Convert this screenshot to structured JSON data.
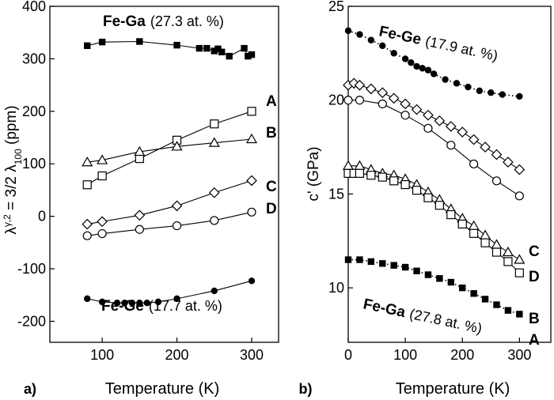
{
  "chart_data": [
    {
      "type": "line",
      "panel": "a)",
      "xlabel": "Temperature (K)",
      "ylabel": {
        "symbol": "λ",
        "sup": "γ,2",
        "middle": " = 3/2 λ",
        "sub": "100",
        "unit": " (ppm)"
      },
      "xlim": [
        30,
        336
      ],
      "ylim": [
        -240,
        400
      ],
      "xticks": [
        100,
        200,
        300
      ],
      "yticks": [
        -200,
        -100,
        0,
        100,
        200,
        300,
        400
      ],
      "series": [
        {
          "name": "Fe-Ga",
          "note": "(27.3 at. %)",
          "marker": "filled-square",
          "line": "solid",
          "color": "#000000",
          "x": [
            80,
            100,
            150,
            200,
            230,
            240,
            250,
            255,
            260,
            270,
            290,
            295,
            300
          ],
          "values": [
            325,
            332,
            333,
            326,
            320,
            320,
            315,
            319,
            313,
            305,
            320,
            305,
            308
          ]
        },
        {
          "name": "A",
          "marker": "open-square",
          "line": "solid",
          "color": "#000000",
          "x": [
            80,
            100,
            150,
            200,
            250,
            300
          ],
          "values": [
            60,
            77,
            110,
            145,
            176,
            200
          ]
        },
        {
          "name": "B",
          "marker": "open-triangle",
          "line": "solid",
          "color": "#000000",
          "x": [
            80,
            100,
            150,
            200,
            250,
            300
          ],
          "values": [
            103,
            107,
            123,
            133,
            140,
            147
          ]
        },
        {
          "name": "C",
          "marker": "open-diamond",
          "line": "solid",
          "color": "#000000",
          "x": [
            80,
            100,
            150,
            200,
            250,
            300
          ],
          "values": [
            -15,
            -10,
            2,
            20,
            45,
            68
          ]
        },
        {
          "name": "D",
          "marker": "open-circle",
          "line": "solid",
          "color": "#000000",
          "x": [
            80,
            100,
            150,
            200,
            250,
            300
          ],
          "values": [
            -37,
            -33,
            -25,
            -18,
            -8,
            8
          ]
        },
        {
          "name": "Fe-Ge",
          "note": "(17.7 at. %)",
          "marker": "filled-circle",
          "line": "solid",
          "color": "#000000",
          "x": [
            80,
            100,
            120,
            130,
            140,
            150,
            160,
            175,
            200,
            250,
            300
          ],
          "values": [
            -157,
            -163,
            -165,
            -165,
            -165,
            -165,
            -165,
            -163,
            -157,
            -142,
            -123
          ]
        }
      ]
    },
    {
      "type": "line",
      "panel": "b)",
      "xlabel": "Temperature (K)",
      "ylabel": {
        "text": "c' (GPa)"
      },
      "xlim": [
        0,
        355
      ],
      "ylim": [
        7.1,
        25
      ],
      "xticks": [
        0,
        100,
        200,
        300
      ],
      "yticks": [
        10,
        15,
        20,
        25
      ],
      "series": [
        {
          "name": "Fe-Ge",
          "note": "(17.9 at. %)",
          "marker": "filled-circle",
          "line": "dotted",
          "color": "#000000",
          "x": [
            0,
            20,
            40,
            60,
            80,
            100,
            110,
            120,
            130,
            140,
            150,
            170,
            190,
            210,
            230,
            250,
            270,
            300
          ],
          "values": [
            23.7,
            23.5,
            23.2,
            22.9,
            22.5,
            22.2,
            22.0,
            21.8,
            21.7,
            21.6,
            21.4,
            21.1,
            20.9,
            20.7,
            20.5,
            20.4,
            20.3,
            20.2
          ]
        },
        {
          "name": "C",
          "marker": "open-diamond",
          "line": "solid",
          "color": "#000000",
          "x": [
            0,
            10,
            20,
            40,
            60,
            80,
            100,
            120,
            140,
            160,
            180,
            200,
            220,
            240,
            260,
            280,
            300
          ],
          "values": [
            20.8,
            20.9,
            20.8,
            20.6,
            20.4,
            20.1,
            19.8,
            19.5,
            19.2,
            18.9,
            18.6,
            18.3,
            17.9,
            17.5,
            17.1,
            16.7,
            16.3
          ]
        },
        {
          "name": "D",
          "marker": "open-circle",
          "line": "solid",
          "color": "#000000",
          "x": [
            0,
            20,
            60,
            100,
            140,
            180,
            220,
            260,
            300
          ],
          "values": [
            20.0,
            20.0,
            19.8,
            19.2,
            18.5,
            17.6,
            16.6,
            15.7,
            14.9
          ]
        },
        {
          "name": "B",
          "marker": "open-triangle",
          "line": "solid",
          "color": "#000000",
          "x": [
            0,
            20,
            40,
            60,
            80,
            100,
            120,
            140,
            160,
            180,
            200,
            220,
            240,
            260,
            280,
            300
          ],
          "values": [
            16.5,
            16.5,
            16.3,
            16.1,
            16.0,
            15.8,
            15.5,
            15.1,
            14.7,
            14.2,
            13.7,
            13.3,
            12.8,
            12.3,
            11.9,
            11.5
          ]
        },
        {
          "name": "A",
          "marker": "open-square",
          "line": "solid",
          "color": "#000000",
          "x": [
            0,
            10,
            20,
            40,
            60,
            80,
            100,
            120,
            140,
            160,
            180,
            200,
            220,
            240,
            260,
            280,
            300
          ],
          "values": [
            16.1,
            16.1,
            16.1,
            16.0,
            15.9,
            15.7,
            15.5,
            15.2,
            14.8,
            14.4,
            13.9,
            13.4,
            12.9,
            12.4,
            11.9,
            11.4,
            10.8
          ]
        },
        {
          "name": "Fe-Ga",
          "note": "(27.8 at. %)",
          "marker": "filled-square",
          "line": "dotted",
          "color": "#000000",
          "x": [
            0,
            20,
            40,
            60,
            80,
            100,
            120,
            140,
            160,
            180,
            200,
            220,
            240,
            260,
            280,
            300
          ],
          "values": [
            11.5,
            11.5,
            11.4,
            11.3,
            11.2,
            11.1,
            10.9,
            10.7,
            10.5,
            10.3,
            10.0,
            9.7,
            9.4,
            9.1,
            8.8,
            8.6
          ]
        }
      ]
    }
  ]
}
